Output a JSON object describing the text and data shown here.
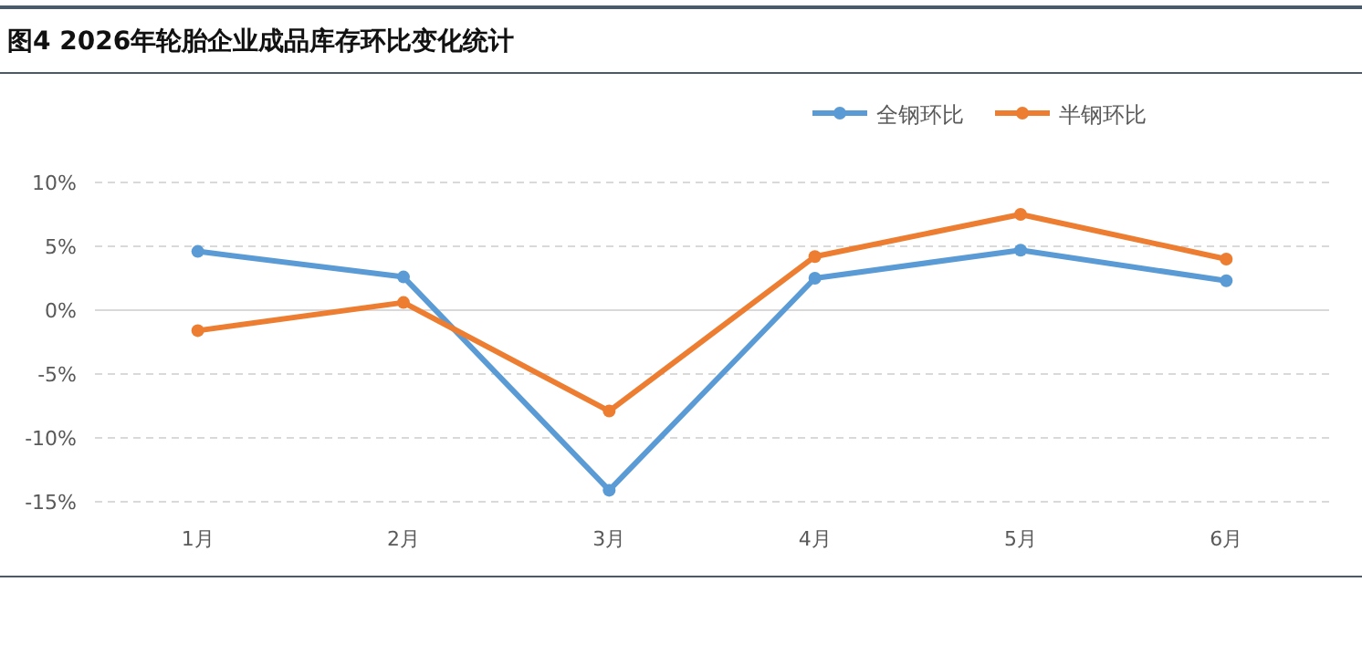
{
  "chart_data": {
    "type": "line",
    "title": "图4  2026年轮胎企业成品库存环比变化统计",
    "categories": [
      "1月",
      "2月",
      "3月",
      "4月",
      "5月",
      "6月"
    ],
    "series": [
      {
        "name": "全钢环比",
        "color": "#5b9bd5",
        "values": [
          4.6,
          2.6,
          -14.1,
          2.5,
          4.7,
          2.3
        ]
      },
      {
        "name": "半钢环比",
        "color": "#ed7d31",
        "values": [
          -1.6,
          0.6,
          -7.9,
          4.2,
          7.5,
          4.0
        ]
      }
    ],
    "ylim": [
      -15,
      10
    ],
    "yticks": [
      {
        "value": -15,
        "label": "-15%"
      },
      {
        "value": -10,
        "label": "-10%"
      },
      {
        "value": -5,
        "label": "-5%"
      },
      {
        "value": 0,
        "label": "0%"
      },
      {
        "value": 5,
        "label": "5%"
      },
      {
        "value": 10,
        "label": "10%"
      }
    ],
    "grid": "y",
    "legend": "top right",
    "marker": "circle",
    "line_style": "solid"
  }
}
